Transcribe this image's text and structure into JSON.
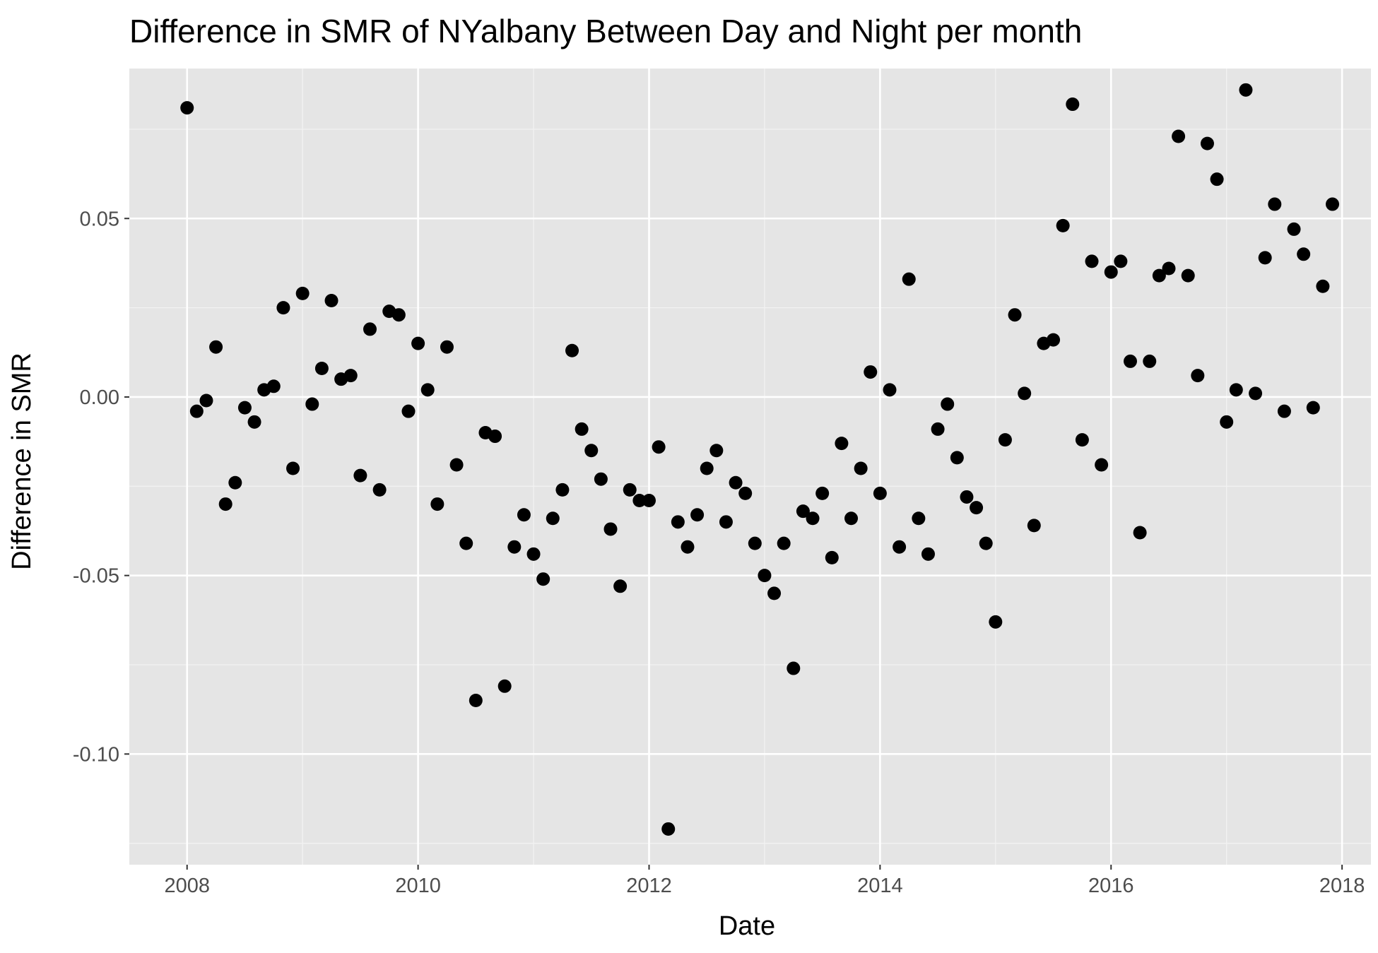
{
  "chart_data": {
    "type": "scatter",
    "title": "Difference in SMR of NYalbany Between Day and Night per month",
    "xlabel": "Date",
    "ylabel": "Difference in SMR",
    "x_ticks": [
      "2008",
      "2010",
      "2012",
      "2014",
      "2016",
      "2018"
    ],
    "y_ticks": [
      "0.05",
      "0.00",
      "-0.05",
      "-0.10"
    ],
    "xlim": [
      "2007-07",
      "2018-04"
    ],
    "ylim": [
      -0.131,
      0.092
    ],
    "grid": true,
    "point_color": "#000000",
    "panel_color": "#e5e5e5",
    "series": [
      {
        "x": [
          "2008-01",
          "2008-02",
          "2008-03",
          "2008-04",
          "2008-05",
          "2008-06",
          "2008-07",
          "2008-08",
          "2008-09",
          "2008-10",
          "2008-11",
          "2008-12",
          "2009-01",
          "2009-02",
          "2009-03",
          "2009-04",
          "2009-05",
          "2009-06",
          "2009-07",
          "2009-08",
          "2009-09",
          "2009-10",
          "2009-11",
          "2009-12",
          "2010-01",
          "2010-02",
          "2010-03",
          "2010-04",
          "2010-05",
          "2010-06",
          "2010-07",
          "2010-08",
          "2010-09",
          "2010-10",
          "2010-11",
          "2010-12",
          "2011-01",
          "2011-02",
          "2011-03",
          "2011-04",
          "2011-05",
          "2011-06",
          "2011-07",
          "2011-08",
          "2011-09",
          "2011-10",
          "2011-11",
          "2011-12",
          "2012-01",
          "2012-02",
          "2012-03",
          "2012-04",
          "2012-05",
          "2012-06",
          "2012-07",
          "2012-08",
          "2012-09",
          "2012-10",
          "2012-11",
          "2012-12",
          "2013-01",
          "2013-02",
          "2013-03",
          "2013-04",
          "2013-05",
          "2013-06",
          "2013-07",
          "2013-08",
          "2013-09",
          "2013-10",
          "2013-11",
          "2013-12",
          "2014-01",
          "2014-02",
          "2014-03",
          "2014-04",
          "2014-05",
          "2014-06",
          "2014-07",
          "2014-08",
          "2014-09",
          "2014-10",
          "2014-11",
          "2014-12",
          "2015-01",
          "2015-02",
          "2015-03",
          "2015-04",
          "2015-05",
          "2015-06",
          "2015-07",
          "2015-08",
          "2015-09",
          "2015-10",
          "2015-11",
          "2015-12",
          "2016-01",
          "2016-02",
          "2016-03",
          "2016-04",
          "2016-05",
          "2016-06",
          "2016-07",
          "2016-08",
          "2016-09",
          "2016-10",
          "2016-11",
          "2016-12",
          "2017-01",
          "2017-02",
          "2017-03",
          "2017-04",
          "2017-05",
          "2017-06",
          "2017-07",
          "2017-08",
          "2017-09",
          "2017-10",
          "2017-11",
          "2017-12"
        ],
        "y": [
          0.081,
          -0.004,
          -0.001,
          0.014,
          -0.03,
          -0.024,
          -0.003,
          -0.007,
          0.002,
          0.003,
          0.025,
          -0.02,
          0.029,
          -0.002,
          0.008,
          0.027,
          0.005,
          0.006,
          -0.022,
          0.019,
          -0.026,
          0.024,
          0.023,
          -0.004,
          0.015,
          0.002,
          -0.03,
          0.014,
          -0.019,
          -0.041,
          -0.085,
          -0.01,
          -0.011,
          -0.081,
          -0.042,
          -0.033,
          -0.044,
          -0.051,
          -0.034,
          -0.026,
          0.013,
          -0.009,
          -0.015,
          -0.023,
          -0.037,
          -0.053,
          -0.026,
          -0.029,
          -0.029,
          -0.014,
          -0.121,
          -0.035,
          -0.042,
          -0.033,
          -0.02,
          -0.015,
          -0.035,
          -0.024,
          -0.027,
          -0.041,
          -0.05,
          -0.055,
          -0.041,
          -0.076,
          -0.032,
          -0.034,
          -0.027,
          -0.045,
          -0.013,
          -0.034,
          -0.02,
          0.007,
          -0.027,
          0.002,
          -0.042,
          0.033,
          -0.034,
          -0.044,
          -0.009,
          -0.002,
          -0.017,
          -0.028,
          -0.031,
          -0.041,
          -0.063,
          -0.012,
          0.023,
          0.001,
          -0.036,
          0.015,
          0.016,
          0.048,
          0.082,
          -0.012,
          0.038,
          -0.019,
          0.035,
          0.038,
          0.01,
          -0.038,
          0.01,
          0.034,
          0.036,
          0.073,
          0.034,
          0.006,
          0.071,
          0.061,
          -0.007,
          0.002,
          0.086,
          0.001,
          0.039,
          0.054,
          -0.004,
          0.047,
          0.04,
          -0.003,
          0.031,
          0.054
        ]
      }
    ]
  }
}
